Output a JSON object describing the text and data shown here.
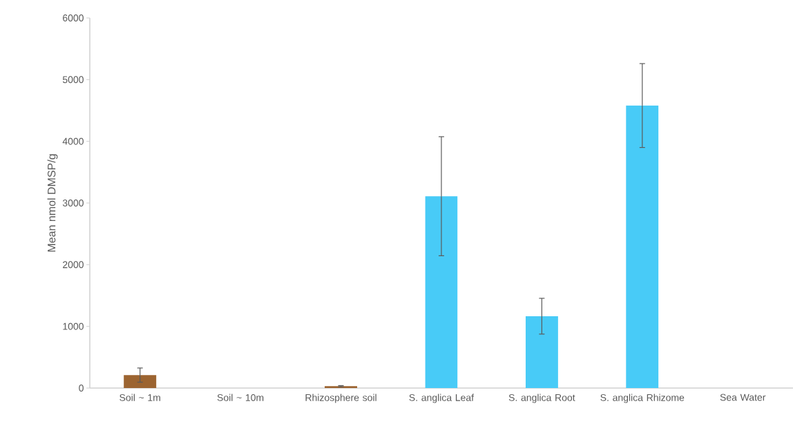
{
  "chart_data": {
    "type": "bar",
    "ylabel": "Mean nmol DMSP/g",
    "categories": [
      "Soil ~ 1m",
      "Soil ~ 10m",
      "Rhizosphere soil",
      "S. anglica Leaf",
      "S. anglica Root",
      "S. anglica Rhizome",
      "Sea Water"
    ],
    "values": [
      210,
      null,
      30,
      3110,
      1165,
      4580,
      null
    ],
    "errors": [
      115,
      null,
      10,
      965,
      290,
      680,
      null
    ],
    "colors": [
      "#9c6431",
      "#9c6431",
      "#9c6431",
      "#48cbf7",
      "#48cbf7",
      "#48cbf7",
      "#48cbf7"
    ],
    "ylim": [
      0,
      6000
    ],
    "yticks": [
      0,
      1000,
      2000,
      3000,
      4000,
      5000,
      6000
    ],
    "grid": false
  }
}
